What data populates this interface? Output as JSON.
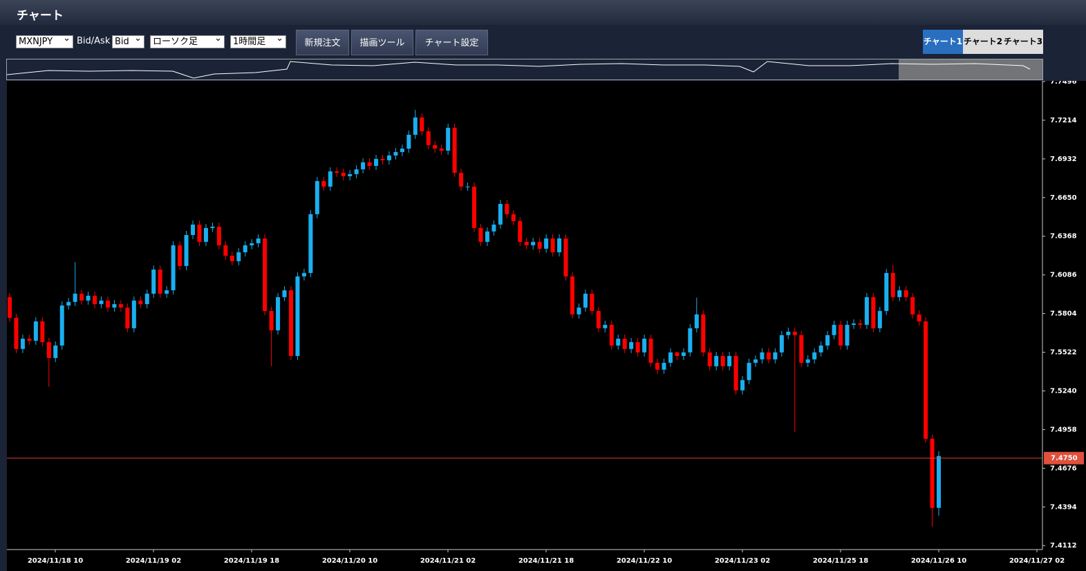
{
  "header": {
    "title": "チャート"
  },
  "toolbar": {
    "symbol": "MXNJPY",
    "price_type_label": "Bid/Ask",
    "price_type": "Bid",
    "chart_style": "ローソク足",
    "timeframe": "1時間足",
    "buttons": [
      "新規注文",
      "描画ツール",
      "チャート設定"
    ],
    "tabs": [
      "チャート1",
      "チャート2",
      "チャート3"
    ]
  },
  "chart_data": {
    "type": "candlestick",
    "x_labels": [
      "2024/11/18 10",
      "2024/11/19 02",
      "2024/11/19 18",
      "2024/11/20 10",
      "2024/11/21 02",
      "2024/11/21 18",
      "2024/11/22 10",
      "2024/11/23 02",
      "2024/11/25 18",
      "2024/11/26 10",
      "2024/11/27 02"
    ],
    "up_color": "#1aaff0",
    "down_color": "#ff0000",
    "ylim": [
      7.4083,
      7.7496
    ],
    "yticks": [
      7.4112,
      7.4394,
      7.4676,
      7.4958,
      {
        "value": 7.524,
        "label": "7.5240"
      },
      7.5522,
      7.5804,
      7.6086,
      7.6368,
      {
        "value": 7.665,
        "label": "7.6650"
      },
      7.6932,
      7.7214,
      7.7496
    ],
    "current_price": {
      "value": 7.475,
      "label": "7.4750"
    },
    "open": [
      7.5924,
      7.5773,
      7.5546,
      7.5621,
      7.5606,
      7.5747,
      7.5596,
      7.548,
      7.5571,
      7.5863,
      7.5889,
      7.5949,
      7.5899,
      7.5934,
      7.5873,
      7.5899,
      7.5848,
      7.5873,
      7.5848,
      7.5697,
      7.5899,
      7.5873,
      7.5949,
      7.6125,
      7.5949,
      7.5974,
      7.6302,
      7.6151,
      7.6377,
      7.6453,
      7.6327,
      7.6428,
      7.6438,
      7.6302,
      7.6226,
      7.6186,
      7.6251,
      7.6302,
      7.6317,
      7.6352,
      7.5823,
      7.5682,
      7.5924,
      7.5974,
      7.5495,
      7.6075,
      7.61,
      7.6529,
      7.677,
      7.673,
      7.6841,
      7.6831,
      7.6806,
      7.6821,
      7.6856,
      7.6907,
      7.6881,
      7.6932,
      7.6922,
      7.6957,
      7.6982,
      7.7007,
      7.7108,
      7.7234,
      7.7133,
      7.7033,
      7.7007,
      7.6992,
      7.7159,
      7.6831,
      7.673,
      7.673,
      7.6428,
      7.6327,
      7.6403,
      7.6453,
      7.6604,
      7.6529,
      7.6478,
      7.6327,
      7.6302,
      7.6327,
      7.6277,
      7.6352,
      7.6251,
      7.6352,
      7.6075,
      7.5798,
      7.5848,
      7.5949,
      7.5823,
      7.5697,
      7.5722,
      7.5571,
      7.5621,
      7.5546,
      7.5596,
      7.5521,
      7.5621,
      7.5445,
      7.5395,
      7.5445,
      7.5521,
      7.5495,
      7.5521,
      7.5697,
      7.5798,
      7.5521,
      7.542,
      7.5495,
      7.542,
      7.5495,
      7.5244,
      7.5319,
      7.5445,
      7.547,
      7.5521,
      7.547,
      7.5521,
      7.5647,
      7.5672,
      7.5647,
      7.5445,
      7.547,
      7.5521,
      7.5571,
      7.5647,
      7.5722,
      7.5571,
      7.5722,
      7.5732,
      7.5722,
      7.5924,
      7.5697,
      7.5823,
      7.61,
      7.5924,
      7.5974,
      7.5924,
      7.5798,
      7.5747,
      7.4891,
      7.4387
    ],
    "high": [
      7.5954,
      7.5803,
      7.5651,
      7.5651,
      7.5777,
      7.5777,
      7.5626,
      7.5601,
      7.5893,
      7.5919,
      7.618,
      7.5979,
      7.5964,
      7.5964,
      7.5929,
      7.5929,
      7.5903,
      7.5903,
      7.5878,
      7.5929,
      7.5929,
      7.5979,
      7.6155,
      7.6155,
      7.6004,
      7.6332,
      7.6332,
      7.6407,
      7.6483,
      7.6483,
      7.6458,
      7.6468,
      7.6468,
      7.6332,
      7.6256,
      7.6281,
      7.6332,
      7.6347,
      7.6382,
      7.6382,
      7.5853,
      7.5954,
      7.6004,
      7.6004,
      7.6105,
      7.613,
      7.6559,
      7.68,
      7.68,
      7.6871,
      7.6871,
      7.6861,
      7.6851,
      7.6886,
      7.6937,
      7.6937,
      7.6962,
      7.6962,
      7.6987,
      7.7012,
      7.7037,
      7.7138,
      7.729,
      7.7264,
      7.7163,
      7.7063,
      7.7037,
      7.7189,
      7.7189,
      7.6861,
      7.676,
      7.676,
      7.6458,
      7.6433,
      7.6483,
      7.6634,
      7.6634,
      7.6559,
      7.6508,
      7.6357,
      7.6357,
      7.6357,
      7.6382,
      7.6382,
      7.6382,
      7.6382,
      7.6105,
      7.5878,
      7.5979,
      7.5979,
      7.5853,
      7.5752,
      7.5752,
      7.5651,
      7.5651,
      7.5626,
      7.5626,
      7.5651,
      7.5651,
      7.5475,
      7.5475,
      7.5551,
      7.5525,
      7.5551,
      7.5727,
      7.592,
      7.5828,
      7.5551,
      7.5525,
      7.5525,
      7.5525,
      7.5525,
      7.5349,
      7.5475,
      7.55,
      7.5551,
      7.5551,
      7.5551,
      7.5677,
      7.5702,
      7.5702,
      7.5677,
      7.55,
      7.5551,
      7.5601,
      7.5677,
      7.5752,
      7.5752,
      7.5752,
      7.5762,
      7.5762,
      7.5954,
      7.5954,
      7.5853,
      7.613,
      7.616,
      7.6004,
      7.6004,
      7.5954,
      7.5828,
      7.5777,
      7.4921,
      7.48
    ],
    "low": [
      7.5743,
      7.5516,
      7.5516,
      7.5576,
      7.5576,
      7.5566,
      7.527,
      7.545,
      7.5541,
      7.5833,
      7.5859,
      7.5869,
      7.5869,
      7.5843,
      7.5843,
      7.5818,
      7.5818,
      7.5818,
      7.5667,
      7.5667,
      7.5843,
      7.5843,
      7.5919,
      7.5919,
      7.5919,
      7.5944,
      7.6121,
      7.6121,
      7.6347,
      7.6297,
      7.6297,
      7.6398,
      7.6272,
      7.6196,
      7.6156,
      7.6156,
      7.6221,
      7.6272,
      7.6287,
      7.5793,
      7.542,
      7.5652,
      7.5894,
      7.5465,
      7.5465,
      7.6045,
      7.607,
      7.6499,
      7.67,
      7.67,
      7.6801,
      7.6776,
      7.6776,
      7.6791,
      7.6826,
      7.6851,
      7.6851,
      7.6892,
      7.6892,
      7.6927,
      7.6952,
      7.6977,
      7.7078,
      7.7103,
      7.7003,
      7.6977,
      7.6962,
      7.6962,
      7.6801,
      7.67,
      7.67,
      7.6398,
      7.6297,
      7.6297,
      7.6373,
      7.6423,
      7.6499,
      7.6448,
      7.6297,
      7.6272,
      7.6272,
      7.6247,
      7.6247,
      7.6221,
      7.6221,
      7.6045,
      7.5768,
      7.5768,
      7.5818,
      7.5793,
      7.5667,
      7.5667,
      7.5541,
      7.5541,
      7.5516,
      7.5516,
      7.5491,
      7.5491,
      7.5415,
      7.5365,
      7.5365,
      7.5415,
      7.5465,
      7.5465,
      7.5491,
      7.5667,
      7.5491,
      7.539,
      7.539,
      7.539,
      7.539,
      7.5214,
      7.5214,
      7.5289,
      7.5415,
      7.544,
      7.544,
      7.544,
      7.5491,
      7.5617,
      7.4941,
      7.5415,
      7.5415,
      7.544,
      7.5491,
      7.5541,
      7.5617,
      7.5541,
      7.5541,
      7.5692,
      7.5692,
      7.5692,
      7.5667,
      7.5667,
      7.5793,
      7.5894,
      7.5894,
      7.5894,
      7.5768,
      7.5717,
      7.4861,
      7.425,
      7.433
    ],
    "close": [
      7.5773,
      7.5546,
      7.5621,
      7.5606,
      7.5747,
      7.5596,
      7.548,
      7.5571,
      7.5863,
      7.5889,
      7.5949,
      7.5899,
      7.5934,
      7.5873,
      7.5899,
      7.5848,
      7.5873,
      7.5848,
      7.5697,
      7.5899,
      7.5873,
      7.5949,
      7.6125,
      7.5949,
      7.5974,
      7.6302,
      7.6151,
      7.6377,
      7.6453,
      7.6327,
      7.6428,
      7.6438,
      7.6302,
      7.6226,
      7.6186,
      7.6251,
      7.6302,
      7.6317,
      7.6352,
      7.5823,
      7.5682,
      7.5924,
      7.5974,
      7.5495,
      7.6075,
      7.61,
      7.6529,
      7.677,
      7.673,
      7.6841,
      7.6831,
      7.6806,
      7.6821,
      7.6856,
      7.6907,
      7.6881,
      7.6932,
      7.6922,
      7.6957,
      7.6982,
      7.7007,
      7.7108,
      7.7234,
      7.7133,
      7.7033,
      7.7007,
      7.6992,
      7.7159,
      7.6831,
      7.673,
      7.673,
      7.6428,
      7.6327,
      7.6403,
      7.6453,
      7.6604,
      7.6529,
      7.6478,
      7.6327,
      7.6302,
      7.6327,
      7.6277,
      7.6352,
      7.6251,
      7.6352,
      7.6075,
      7.5798,
      7.5848,
      7.5949,
      7.5823,
      7.5697,
      7.5722,
      7.5571,
      7.5621,
      7.5546,
      7.5596,
      7.5521,
      7.5621,
      7.5445,
      7.5395,
      7.5445,
      7.5521,
      7.5495,
      7.5521,
      7.5697,
      7.5798,
      7.5521,
      7.542,
      7.5495,
      7.542,
      7.5495,
      7.5244,
      7.5319,
      7.5445,
      7.547,
      7.5521,
      7.547,
      7.5521,
      7.5647,
      7.5672,
      7.5647,
      7.5445,
      7.547,
      7.5521,
      7.5571,
      7.5647,
      7.5722,
      7.5571,
      7.5722,
      7.5732,
      7.5722,
      7.5924,
      7.5697,
      7.5823,
      7.61,
      7.5924,
      7.5974,
      7.5924,
      7.5798,
      7.5747,
      7.4891,
      7.4387,
      7.4765
    ]
  }
}
